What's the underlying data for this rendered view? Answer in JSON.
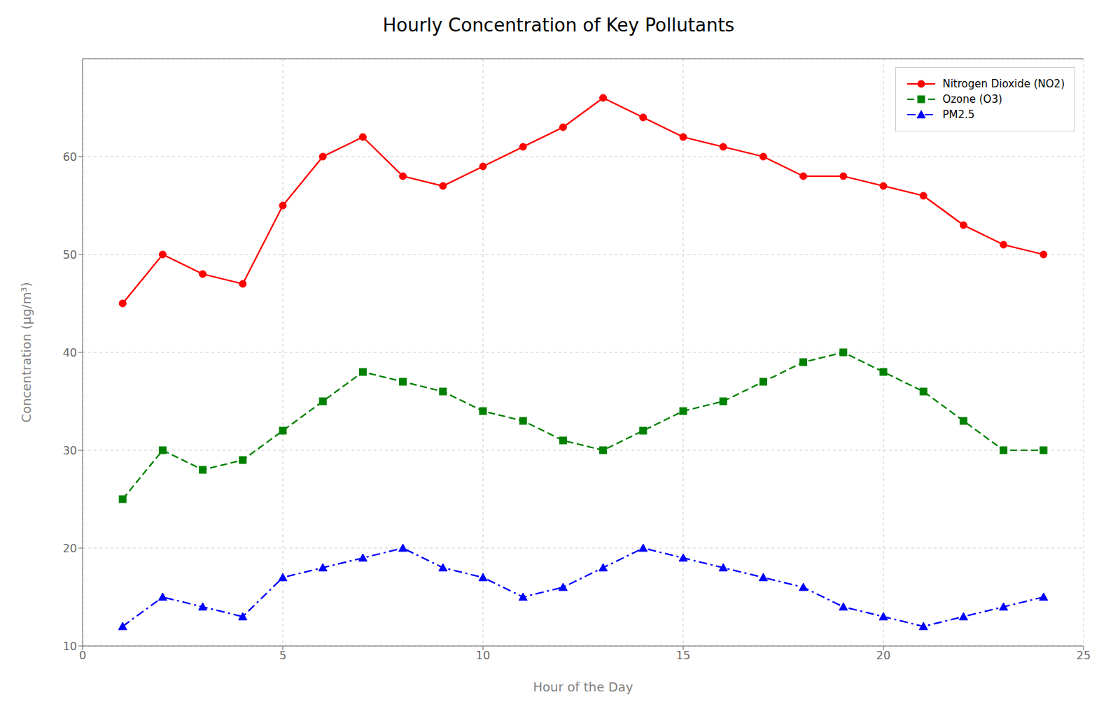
{
  "chart_data": {
    "type": "line",
    "title": "Hourly Concentration of Key Pollutants",
    "xlabel": "Hour of the Day",
    "ylabel": "Concentration (μg/m³)",
    "x": [
      1,
      2,
      3,
      4,
      5,
      6,
      7,
      8,
      9,
      10,
      11,
      12,
      13,
      14,
      15,
      16,
      17,
      18,
      19,
      20,
      21,
      22,
      23,
      24
    ],
    "series": [
      {
        "name": "Nitrogen Dioxide (NO2)",
        "color": "#ff0000",
        "marker": "circle",
        "line_style": "solid",
        "values": [
          45,
          50,
          48,
          47,
          55,
          60,
          62,
          58,
          57,
          59,
          61,
          63,
          66,
          64,
          62,
          61,
          60,
          58,
          58,
          57,
          56,
          53,
          51,
          50
        ]
      },
      {
        "name": "Ozone (O3)",
        "color": "#008000",
        "marker": "square",
        "line_style": "dashed",
        "values": [
          25,
          30,
          28,
          29,
          32,
          35,
          38,
          37,
          36,
          34,
          33,
          31,
          30,
          32,
          34,
          35,
          37,
          39,
          40,
          38,
          36,
          33,
          30,
          30
        ]
      },
      {
        "name": "PM2.5",
        "color": "#0000ff",
        "marker": "triangle",
        "line_style": "dashdot",
        "values": [
          12,
          15,
          14,
          13,
          17,
          18,
          19,
          20,
          18,
          17,
          15,
          16,
          18,
          20,
          19,
          18,
          17,
          16,
          14,
          13,
          12,
          13,
          14,
          15
        ]
      }
    ],
    "xlim": [
      0,
      25
    ],
    "ylim": [
      10,
      70
    ],
    "xticks": [
      0,
      5,
      10,
      15,
      20,
      25
    ],
    "yticks": [
      10,
      20,
      30,
      40,
      50,
      60
    ],
    "grid": true,
    "legend": "upper right"
  }
}
